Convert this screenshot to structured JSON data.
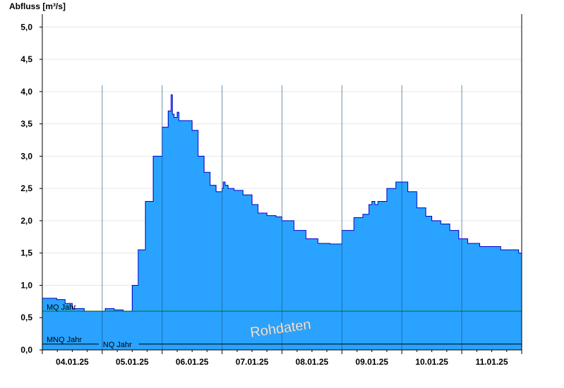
{
  "chart_data": {
    "type": "area",
    "ylabel": "Abfluss [m³/s]",
    "ylim": [
      0,
      5.2
    ],
    "yticks": [
      "0,0",
      "0,5",
      "1,0",
      "1,5",
      "2,0",
      "2,5",
      "3,0",
      "3,5",
      "4,0",
      "4,5",
      "5,0"
    ],
    "ytick_values": [
      0,
      0.5,
      1.0,
      1.5,
      2.0,
      2.5,
      3.0,
      3.5,
      4.0,
      4.5,
      5.0
    ],
    "xlim": [
      0,
      8
    ],
    "day_labels": [
      "04.01.25",
      "05.01.25",
      "06.01.25",
      "07.01.25",
      "08.01.25",
      "09.01.25",
      "10.01.25",
      "11.01.25"
    ],
    "grid": true,
    "series": [
      {
        "color": "#29a3ff",
        "line_color": "#0000cc",
        "x": [
          0,
          0.24,
          0.38,
          0.5,
          0.7,
          0.9,
          1.05,
          1.2,
          1.35,
          1.5,
          1.6,
          1.72,
          1.85,
          2.0,
          2.1,
          2.15,
          2.17,
          2.2,
          2.25,
          2.28,
          2.32,
          2.38,
          2.5,
          2.6,
          2.7,
          2.8,
          2.9,
          3.0,
          3.02,
          3.05,
          3.1,
          3.2,
          3.35,
          3.5,
          3.6,
          3.75,
          3.9,
          4.0,
          4.2,
          4.4,
          4.6,
          4.8,
          5.0,
          5.2,
          5.35,
          5.45,
          5.5,
          5.55,
          5.6,
          5.75,
          5.9,
          6.0,
          6.1,
          6.25,
          6.4,
          6.5,
          6.65,
          6.8,
          6.95,
          7.1,
          7.3,
          7.5,
          7.65,
          7.8,
          7.95,
          8.0
        ],
        "y": [
          0.8,
          0.78,
          0.72,
          0.64,
          0.6,
          0.6,
          0.64,
          0.62,
          0.6,
          1.0,
          1.55,
          2.3,
          3.0,
          3.45,
          3.7,
          3.95,
          3.65,
          3.6,
          3.68,
          3.55,
          3.55,
          3.55,
          3.4,
          3.0,
          2.75,
          2.55,
          2.45,
          2.5,
          2.6,
          2.55,
          2.5,
          2.47,
          2.4,
          2.25,
          2.12,
          2.08,
          2.06,
          2.0,
          1.85,
          1.72,
          1.65,
          1.64,
          1.85,
          2.05,
          2.1,
          2.25,
          2.3,
          2.25,
          2.3,
          2.5,
          2.6,
          2.6,
          2.45,
          2.2,
          2.07,
          2.0,
          1.95,
          1.85,
          1.72,
          1.65,
          1.6,
          1.6,
          1.55,
          1.55,
          1.5,
          1.5
        ]
      }
    ],
    "reference_lines": [
      {
        "label": "MQ Jahr",
        "value": 0.6,
        "color": "#007a00"
      },
      {
        "label": "MNQ Jahr",
        "value": 0.09,
        "color": "#000000"
      },
      {
        "label": "NQ Jahr",
        "value": 0.09,
        "color": "#000000"
      }
    ],
    "annotation": "Rohdaten"
  }
}
